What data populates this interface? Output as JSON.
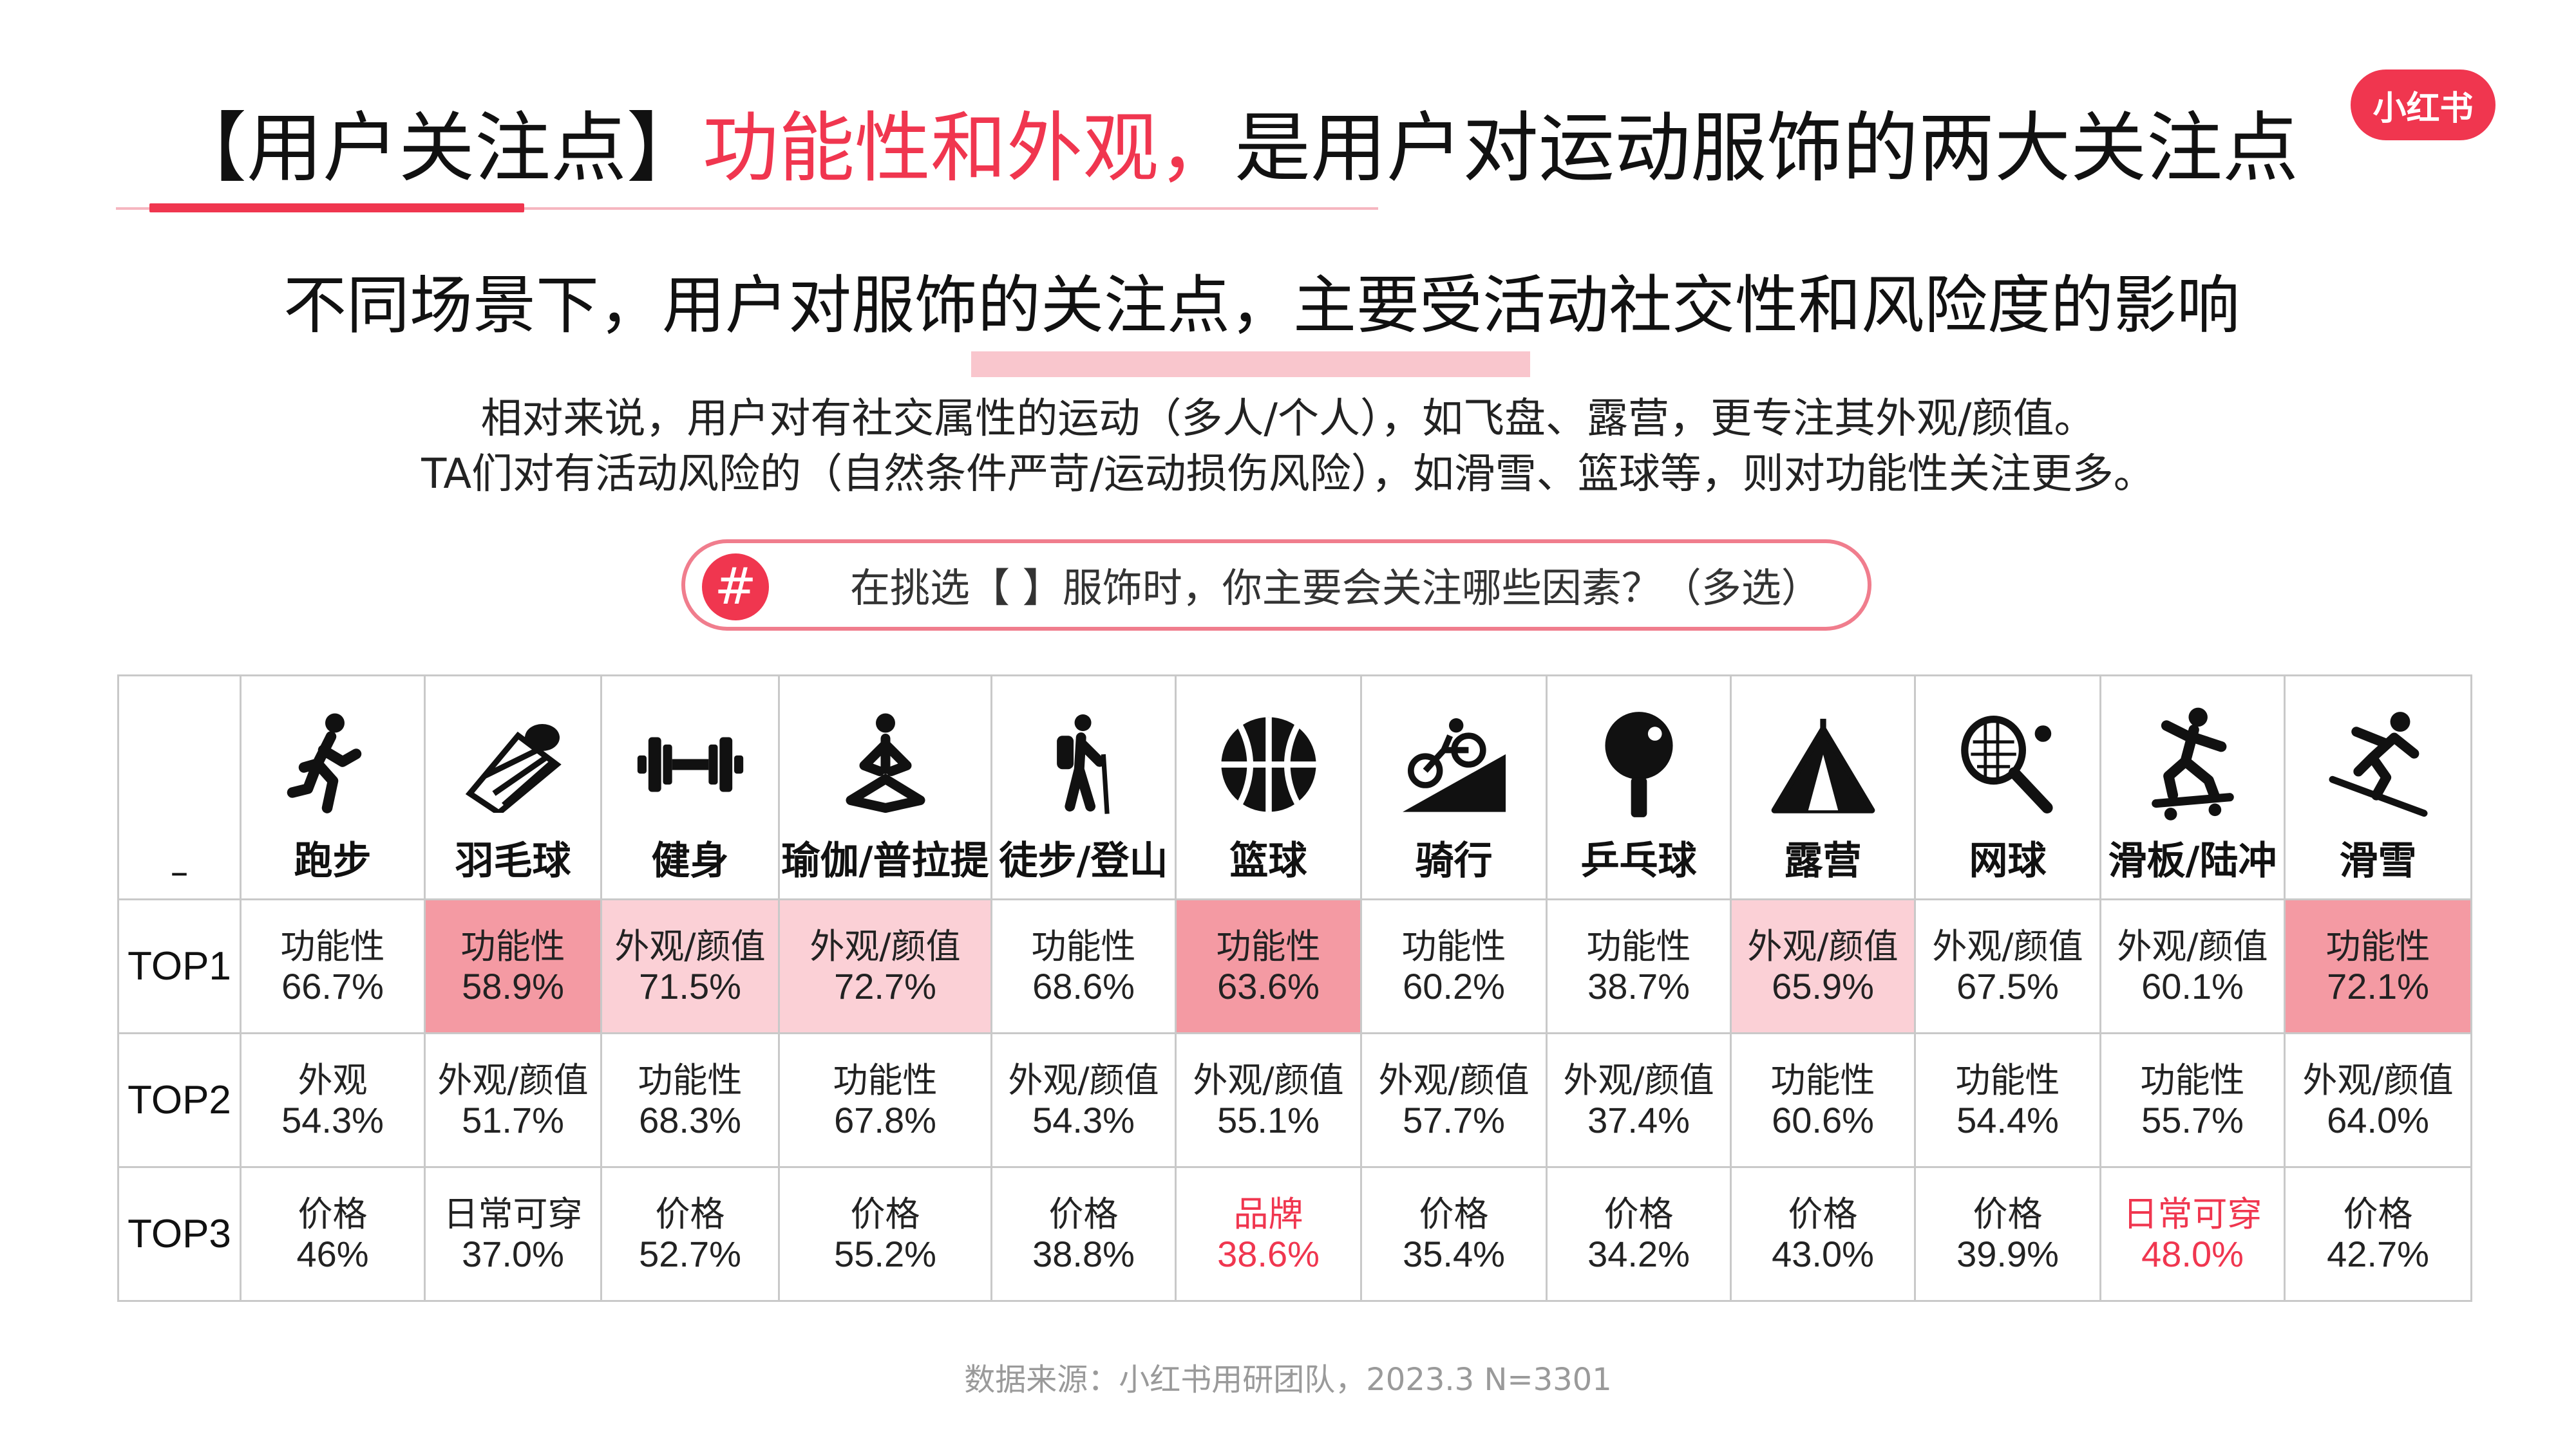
{
  "title": {
    "prefix": "【用户关注点】",
    "accent": "功能性和外观，",
    "rest": "是用户对运动服饰的两大关注点"
  },
  "logo_text": "小红书",
  "subtitle": "不同场景下，用户对服饰的关注点，主要受活动社交性和风险度的影响",
  "description": {
    "line1": "相对来说，用户对有社交属性的运动（多人/个人），如飞盘、露营，更专注其外观/颜值。",
    "line2": "TA们对有活动风险的（自然条件严苛/运动损伤风险），如滑雪、篮球等，则对功能性关注更多。"
  },
  "question": {
    "hash": "#",
    "text": "在挑选【  】服饰时，你主要会关注哪些因素？（多选）"
  },
  "table": {
    "corner": "–",
    "sports": [
      {
        "label": "跑步",
        "icon": "running-icon"
      },
      {
        "label": "羽毛球",
        "icon": "shuttlecock-icon"
      },
      {
        "label": "健身",
        "icon": "dumbbell-icon"
      },
      {
        "label": "瑜伽/普拉提",
        "icon": "yoga-icon"
      },
      {
        "label": "徒步/登山",
        "icon": "hiking-icon"
      },
      {
        "label": "篮球",
        "icon": "basketball-icon"
      },
      {
        "label": "骑行",
        "icon": "cycling-icon"
      },
      {
        "label": "乒乓球",
        "icon": "ping-pong-icon"
      },
      {
        "label": "露营",
        "icon": "tent-icon"
      },
      {
        "label": "网球",
        "icon": "tennis-icon"
      },
      {
        "label": "滑板/陆冲",
        "icon": "skateboard-icon"
      },
      {
        "label": "滑雪",
        "icon": "skiing-icon"
      }
    ],
    "rows": [
      {
        "label": "TOP1",
        "cells": [
          {
            "factor": "功能性",
            "pct": "66.7%",
            "hl": ""
          },
          {
            "factor": "功能性",
            "pct": "58.9%",
            "hl": "dark"
          },
          {
            "factor": "外观/颜值",
            "pct": "71.5%",
            "hl": "light"
          },
          {
            "factor": "外观/颜值",
            "pct": "72.7%",
            "hl": "light"
          },
          {
            "factor": "功能性",
            "pct": "68.6%",
            "hl": ""
          },
          {
            "factor": "功能性",
            "pct": "63.6%",
            "hl": "dark"
          },
          {
            "factor": "功能性",
            "pct": "60.2%",
            "hl": ""
          },
          {
            "factor": "功能性",
            "pct": "38.7%",
            "hl": ""
          },
          {
            "factor": "外观/颜值",
            "pct": "65.9%",
            "hl": "light"
          },
          {
            "factor": "外观/颜值",
            "pct": "67.5%",
            "hl": ""
          },
          {
            "factor": "外观/颜值",
            "pct": "60.1%",
            "hl": ""
          },
          {
            "factor": "功能性",
            "pct": "72.1%",
            "hl": "dark"
          }
        ]
      },
      {
        "label": "TOP2",
        "cells": [
          {
            "factor": "外观",
            "pct": "54.3%",
            "hl": ""
          },
          {
            "factor": "外观/颜值",
            "pct": "51.7%",
            "hl": ""
          },
          {
            "factor": "功能性",
            "pct": "68.3%",
            "hl": ""
          },
          {
            "factor": "功能性",
            "pct": "67.8%",
            "hl": ""
          },
          {
            "factor": "外观/颜值",
            "pct": "54.3%",
            "hl": ""
          },
          {
            "factor": "外观/颜值",
            "pct": "55.1%",
            "hl": ""
          },
          {
            "factor": "外观/颜值",
            "pct": "57.7%",
            "hl": ""
          },
          {
            "factor": "外观/颜值",
            "pct": "37.4%",
            "hl": ""
          },
          {
            "factor": "功能性",
            "pct": "60.6%",
            "hl": ""
          },
          {
            "factor": "功能性",
            "pct": "54.4%",
            "hl": ""
          },
          {
            "factor": "功能性",
            "pct": "55.7%",
            "hl": ""
          },
          {
            "factor": "外观/颜值",
            "pct": "64.0%",
            "hl": ""
          }
        ]
      },
      {
        "label": "TOP3",
        "cells": [
          {
            "factor": "价格",
            "pct": "46%",
            "hl": ""
          },
          {
            "factor": "日常可穿",
            "pct": "37.0%",
            "hl": ""
          },
          {
            "factor": "价格",
            "pct": "52.7%",
            "hl": ""
          },
          {
            "factor": "价格",
            "pct": "55.2%",
            "hl": ""
          },
          {
            "factor": "价格",
            "pct": "38.8%",
            "hl": ""
          },
          {
            "factor": "品牌",
            "pct": "38.6%",
            "hl": "text"
          },
          {
            "factor": "价格",
            "pct": "35.4%",
            "hl": ""
          },
          {
            "factor": "价格",
            "pct": "34.2%",
            "hl": ""
          },
          {
            "factor": "价格",
            "pct": "43.0%",
            "hl": ""
          },
          {
            "factor": "价格",
            "pct": "39.9%",
            "hl": ""
          },
          {
            "factor": "日常可穿",
            "pct": "48.0%",
            "hl": "text"
          },
          {
            "factor": "价格",
            "pct": "42.7%",
            "hl": ""
          }
        ]
      }
    ]
  },
  "source": "数据来源：小红书用研团队，2023.3 N=3301",
  "colors": {
    "accent": "#f0364f",
    "highlight_dark": "#f49aa3",
    "highlight_light": "#fbd0d6"
  }
}
